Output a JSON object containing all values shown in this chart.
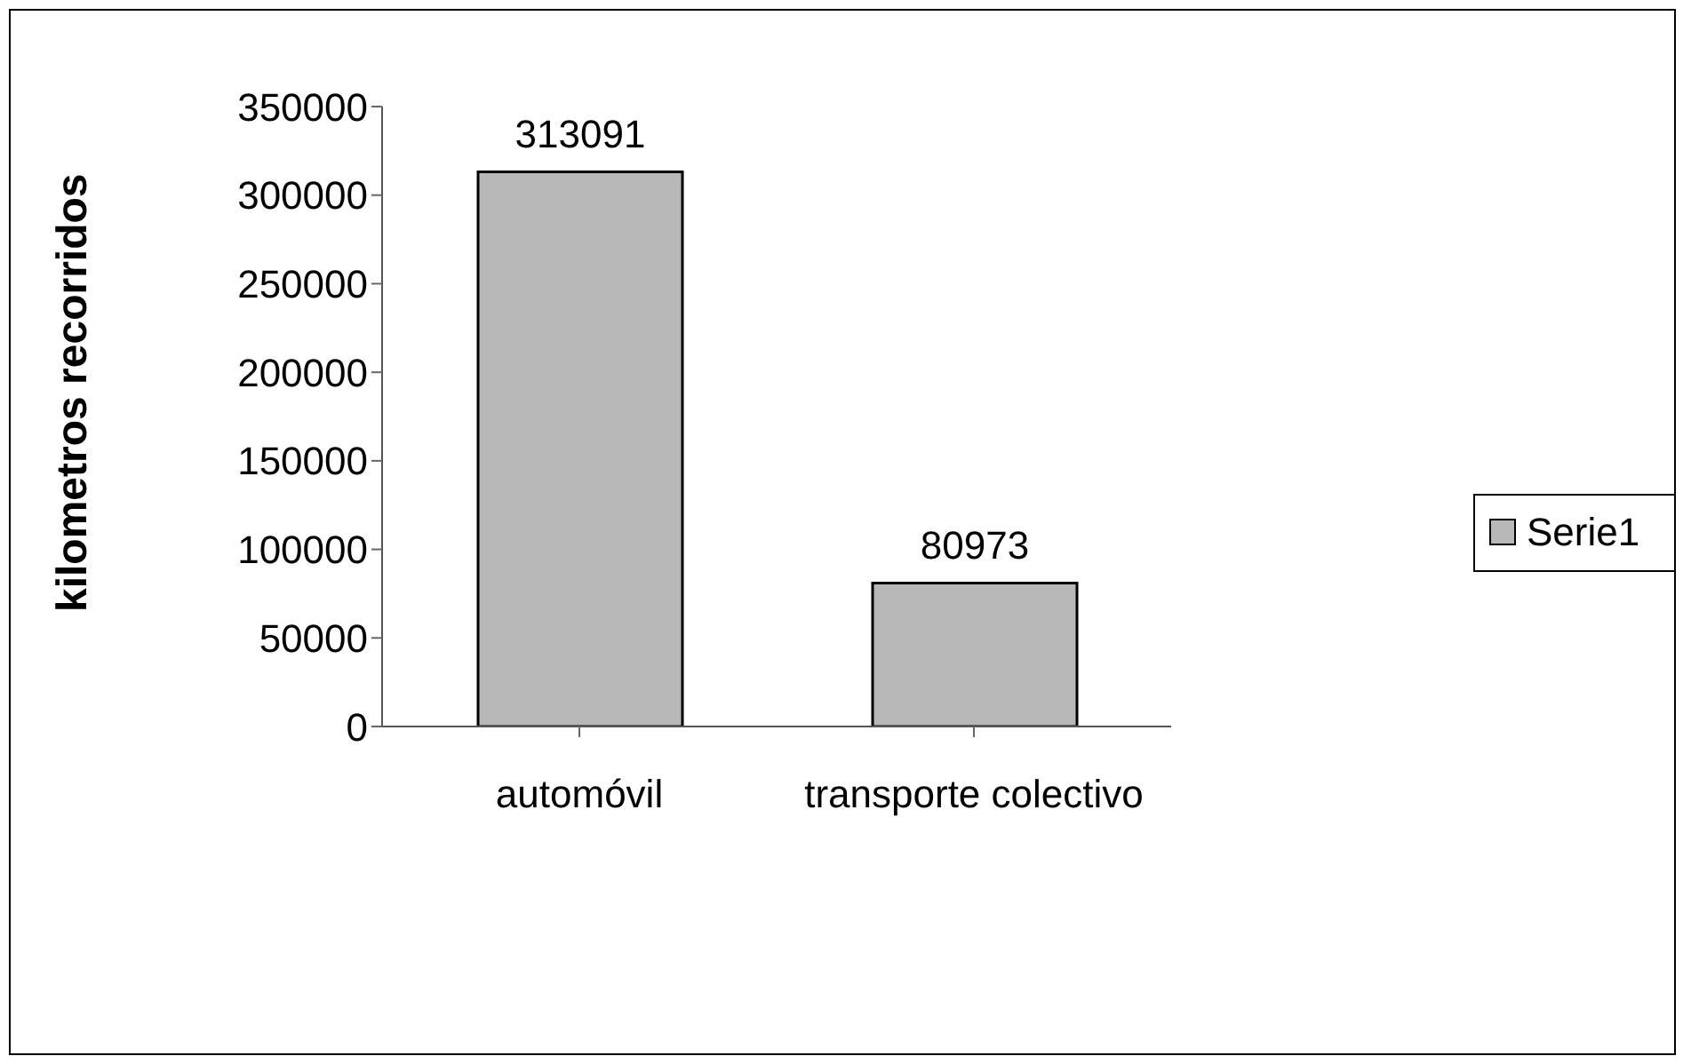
{
  "chart_data": {
    "type": "bar",
    "ylabel": "kilometros recorridos",
    "categories": [
      "automóvil",
      "transporte colectivo"
    ],
    "series": [
      {
        "name": "Serie1",
        "color": "#b8b8b8",
        "values": [
          313091,
          80973
        ]
      }
    ],
    "ylim": [
      0,
      350000
    ],
    "yticks": [
      0,
      50000,
      100000,
      150000,
      200000,
      250000,
      300000,
      350000
    ],
    "data_labels": true,
    "legend": "right",
    "grid": false
  }
}
